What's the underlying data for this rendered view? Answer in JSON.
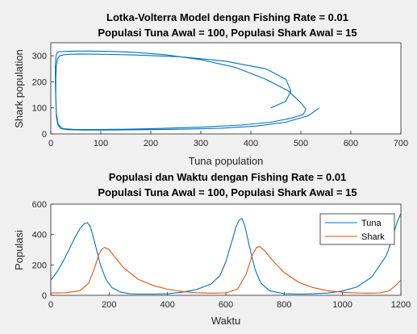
{
  "chart_data": [
    {
      "type": "line",
      "title": [
        "Lotka-Volterra Model dengan Fishing Rate = 0.01",
        "Populasi Tuna Awal = 100, Populasi Shark Awal = 15"
      ],
      "xlabel": "Tuna population",
      "ylabel": "Shark population",
      "xlim": [
        0,
        700
      ],
      "ylim": [
        0,
        350
      ],
      "xticks": [
        "0",
        "100",
        "200",
        "300",
        "400",
        "500",
        "600",
        "700"
      ],
      "yticks": [
        "0",
        "100",
        "200",
        "300"
      ],
      "color": "#0072bd",
      "series": [
        {
          "x": [
            537,
            515,
            470,
            410,
            340,
            260,
            180,
            110,
            65,
            35,
            20,
            14,
            11,
            10,
            9,
            9,
            10,
            12,
            15,
            20,
            30,
            50,
            80,
            120,
            170,
            230,
            300,
            370,
            430,
            475,
            500,
            510,
            505,
            480,
            440,
            380,
            300,
            220,
            150,
            90,
            50,
            25,
            15,
            11,
            10,
            10,
            11,
            13,
            18,
            30,
            55,
            100,
            170,
            260,
            350,
            430,
            470,
            480,
            470,
            440
          ],
          "y": [
            100,
            70,
            45,
            30,
            22,
            18,
            16,
            15,
            15,
            16,
            20,
            35,
            70,
            130,
            200,
            260,
            295,
            310,
            315,
            316,
            317,
            318,
            318,
            317,
            313,
            304,
            285,
            255,
            210,
            165,
            120,
            95,
            75,
            60,
            45,
            34,
            26,
            21,
            18,
            17,
            17,
            20,
            35,
            80,
            150,
            215,
            260,
            288,
            300,
            305,
            307,
            306,
            303,
            296,
            279,
            250,
            210,
            165,
            125,
            100
          ]
        }
      ]
    },
    {
      "type": "line",
      "title": [
        "Populasi dan Waktu dengan Fishing Rate = 0.01",
        "Populasi Tuna Awal = 100, Populasi Shark Awal = 15"
      ],
      "xlabel": "Waktu",
      "ylabel": "Populasi",
      "xlim": [
        0,
        1200
      ],
      "ylim": [
        0,
        600
      ],
      "xticks": [
        "0",
        "200",
        "400",
        "600",
        "800",
        "1000",
        "1200"
      ],
      "yticks": [
        "0",
        "200",
        "400",
        "600"
      ],
      "legend": "top-right",
      "series": [
        {
          "name": "Tuna",
          "color": "#0072bd",
          "x": [
            0,
            20,
            40,
            60,
            80,
            100,
            115,
            125,
            135,
            150,
            170,
            190,
            210,
            240,
            270,
            300,
            350,
            400,
            450,
            500,
            550,
            580,
            600,
            620,
            635,
            645,
            655,
            665,
            680,
            700,
            720,
            750,
            800,
            850,
            900,
            950,
            1000,
            1050,
            1100,
            1150,
            1170,
            1185,
            1200
          ],
          "y": [
            100,
            150,
            215,
            290,
            370,
            440,
            472,
            478,
            455,
            350,
            200,
            100,
            50,
            20,
            10,
            8,
            8,
            10,
            20,
            38,
            75,
            130,
            220,
            350,
            450,
            495,
            505,
            460,
            330,
            170,
            80,
            30,
            10,
            8,
            10,
            15,
            28,
            55,
            120,
            260,
            370,
            470,
            540
          ]
        },
        {
          "name": "Shark",
          "color": "#d95319",
          "x": [
            0,
            50,
            100,
            130,
            150,
            165,
            175,
            185,
            200,
            220,
            250,
            300,
            350,
            400,
            450,
            500,
            550,
            600,
            640,
            670,
            690,
            705,
            715,
            730,
            760,
            800,
            850,
            900,
            950,
            1000,
            1050,
            1100,
            1130,
            1160,
            1185,
            1200
          ],
          "y": [
            15,
            17,
            30,
            80,
            180,
            270,
            305,
            315,
            300,
            250,
            180,
            105,
            65,
            40,
            25,
            17,
            14,
            16,
            40,
            140,
            260,
            315,
            320,
            300,
            230,
            150,
            85,
            50,
            30,
            20,
            15,
            14,
            16,
            30,
            70,
            100
          ]
        }
      ]
    }
  ]
}
